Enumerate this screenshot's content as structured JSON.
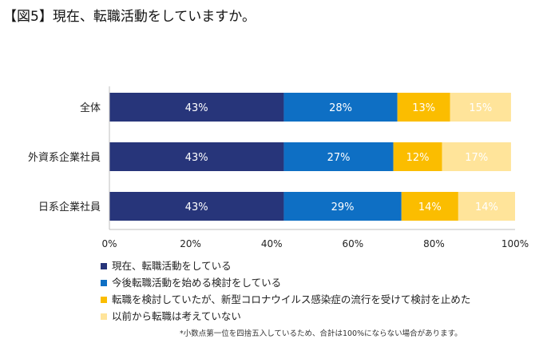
{
  "title": "【図5】現在、転職活動をしていますか。",
  "chart_data": {
    "type": "bar",
    "orientation": "horizontal",
    "stacked": true,
    "percent": true,
    "categories": [
      "全体",
      "外資系企業社員",
      "日系企業社員"
    ],
    "series": [
      {
        "name": "現在、転職活動をしている",
        "color": "#27357a",
        "values": [
          43,
          43,
          43
        ],
        "labels": [
          "43%",
          "43%",
          "43%"
        ]
      },
      {
        "name": "今後転職活動を始める検討をしている",
        "color": "#0e6fc4",
        "values": [
          28,
          27,
          29
        ],
        "labels": [
          "28%",
          "27%",
          "29%"
        ]
      },
      {
        "name": "転職を検討していたが、新型コロナウイルス感染症の流行を受けて検討を止めた",
        "color": "#fbbd00",
        "values": [
          13,
          12,
          14
        ],
        "labels": [
          "13%",
          "12%",
          "14%"
        ]
      },
      {
        "name": "以前から転職は考えていない",
        "color": "#ffe49a",
        "values": [
          15,
          17,
          14
        ],
        "labels": [
          "15%",
          "17%",
          "14%"
        ]
      }
    ],
    "xlim": [
      0,
      100
    ],
    "xticks": [
      "0%",
      "20%",
      "40%",
      "60%",
      "80%",
      "100%"
    ],
    "grid": false,
    "legend_position": "bottom"
  },
  "footnote": "*小数点第一位を四捨五入しているため、合計は100%にならない場合があります。"
}
